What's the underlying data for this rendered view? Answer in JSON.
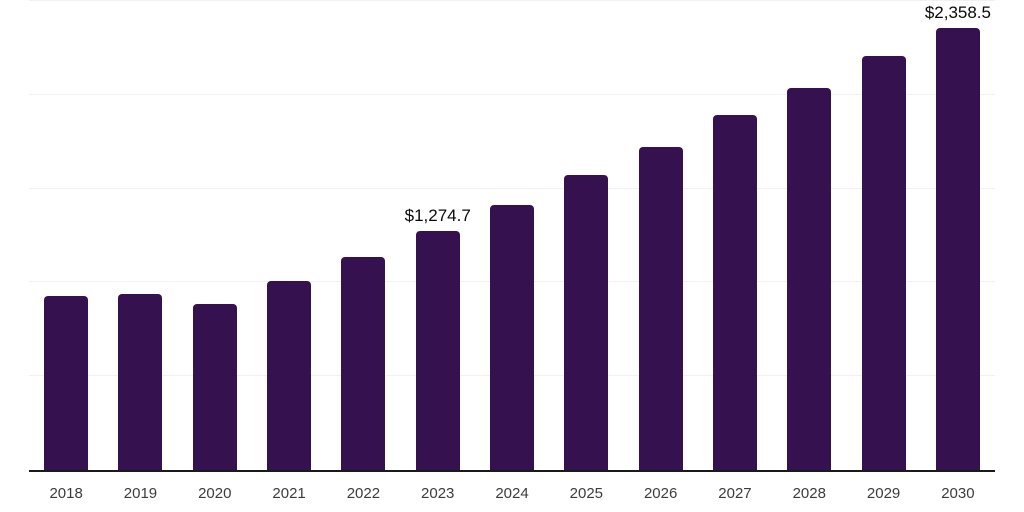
{
  "chart_data": {
    "type": "bar",
    "title": "",
    "xlabel": "",
    "ylabel": "",
    "categories": [
      "2018",
      "2019",
      "2020",
      "2021",
      "2022",
      "2023",
      "2024",
      "2025",
      "2026",
      "2027",
      "2028",
      "2029",
      "2030"
    ],
    "values": [
      930,
      940,
      885,
      1010,
      1135,
      1274.7,
      1415,
      1570,
      1720,
      1890,
      2035,
      2205,
      2358.5
    ],
    "data_labels": [
      "",
      "",
      "",
      "",
      "",
      "$1,274.7",
      "",
      "",
      "",
      "",
      "",
      "",
      "$2,358.5"
    ],
    "ylim": [
      0,
      2500
    ],
    "gridline_values": [
      500,
      1000,
      1500,
      2000,
      2500
    ],
    "grid": "horizontal, no y-axis tick labels",
    "legend": "none",
    "colors": {
      "bar": "#351150",
      "axis_line": "#1a1a1a",
      "gridline": "#f1f1f1",
      "tick_label": "#3c3c3c",
      "data_label": "#0a0a0a",
      "background": "#ffffff"
    }
  }
}
